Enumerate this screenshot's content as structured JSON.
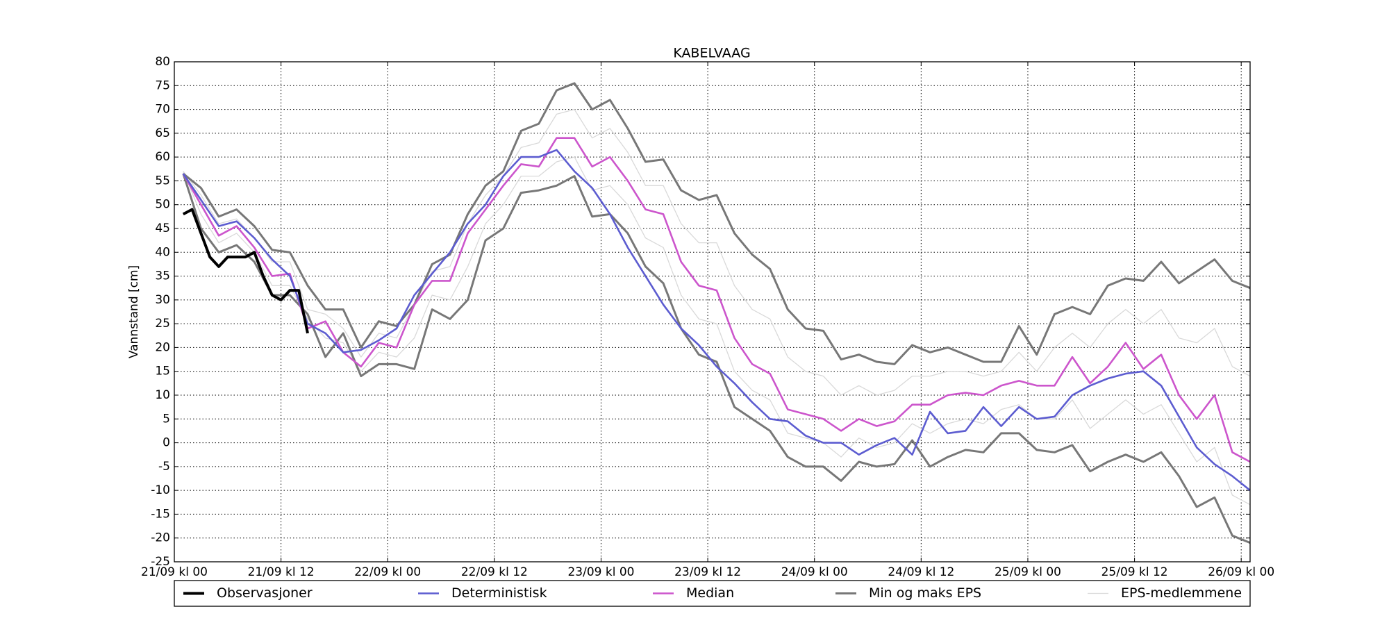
{
  "chart_data": {
    "type": "line",
    "title": "KABELVAAG",
    "y_label": "Vannstand [cm]",
    "x": [
      1,
      3,
      5,
      7,
      9,
      11,
      13,
      15,
      17,
      19,
      21,
      23,
      25,
      27,
      29,
      31,
      33,
      35,
      37,
      39,
      41,
      43,
      45,
      47,
      49,
      51,
      53,
      55,
      57,
      59,
      61,
      63,
      65,
      67,
      69,
      71,
      73,
      75,
      77,
      79,
      81,
      83,
      85,
      87,
      89,
      91,
      93,
      95,
      97,
      99,
      101,
      103,
      105,
      107,
      109,
      111,
      113,
      115,
      117,
      119,
      121
    ],
    "xlim": [
      0,
      121
    ],
    "xticks": [
      {
        "value": 0,
        "label": "21/09 kl 00"
      },
      {
        "value": 12,
        "label": "21/09 kl 12"
      },
      {
        "value": 24,
        "label": "22/09 kl 00"
      },
      {
        "value": 36,
        "label": "22/09 kl 12"
      },
      {
        "value": 48,
        "label": "23/09 kl 00"
      },
      {
        "value": 60,
        "label": "23/09 kl 12"
      },
      {
        "value": 72,
        "label": "24/09 kl 00"
      },
      {
        "value": 84,
        "label": "24/09 kl 12"
      },
      {
        "value": 96,
        "label": "25/09 kl 00"
      },
      {
        "value": 108,
        "label": "25/09 kl 12"
      },
      {
        "value": 120,
        "label": "26/09 kl 00"
      }
    ],
    "ylim": [
      -25,
      80
    ],
    "yticks": [
      -25,
      -20,
      -15,
      -10,
      -5,
      0,
      5,
      10,
      15,
      20,
      25,
      30,
      35,
      40,
      45,
      50,
      55,
      60,
      65,
      70,
      75,
      80
    ],
    "grid": true,
    "legend": "bottom",
    "series": [
      {
        "name": "Observasjoner",
        "color": "#000000",
        "x": [
          1,
          2,
          3,
          4,
          5,
          6,
          7,
          8,
          9,
          10,
          11,
          12,
          13,
          14,
          15
        ],
        "values": [
          48,
          49,
          44,
          39,
          37,
          39,
          39,
          39,
          40,
          35,
          31,
          30,
          32,
          32,
          23
        ]
      },
      {
        "name": "Deterministisk",
        "color": "#5c5cd0",
        "values": [
          56.5,
          51,
          45.5,
          46.5,
          43,
          38.5,
          35,
          25,
          23,
          19,
          19.5,
          21.5,
          24,
          31,
          35.5,
          40,
          46,
          50,
          56,
          60,
          60,
          61.5,
          57,
          53.5,
          48,
          41,
          35,
          29,
          24,
          20.5,
          16,
          12.5,
          8.5,
          5,
          4.5,
          1.5,
          0,
          0,
          -2.5,
          -0.5,
          1,
          -2.5,
          6.5,
          2,
          2.5,
          7.5,
          3.5,
          7.5,
          5,
          5.5,
          10,
          12,
          13.5,
          14.5,
          15,
          12,
          5.5,
          -1,
          -4.5,
          -7,
          -10
        ]
      },
      {
        "name": "Median",
        "color": "#cc55cc",
        "values": [
          56.5,
          50,
          43.5,
          45.5,
          41,
          35,
          35.5,
          24,
          25.5,
          19,
          16,
          21,
          20,
          29,
          34,
          34,
          44,
          49,
          54,
          58.5,
          58,
          64,
          64,
          58,
          60,
          55,
          49,
          48,
          38,
          33,
          32,
          22,
          16.5,
          14.5,
          7,
          6,
          5,
          2.5,
          5,
          3.5,
          4.5,
          8,
          8,
          10,
          10.5,
          10,
          12,
          13,
          12,
          12,
          18,
          12.5,
          16,
          21,
          15.5,
          18.5,
          10,
          5,
          10,
          -2,
          -4
        ]
      },
      {
        "name": "Min og maks EPS",
        "color": "#777777",
        "min": [
          56.5,
          45,
          40,
          41.5,
          38,
          31,
          31,
          27,
          18,
          23,
          14,
          16.5,
          16.5,
          15.5,
          28,
          26,
          30,
          42.5,
          45,
          52.5,
          53,
          54,
          56,
          47.5,
          48,
          44,
          37,
          33.5,
          24,
          18.5,
          17,
          7.5,
          5,
          2.5,
          -3,
          -5,
          -5,
          -8,
          -4,
          -5,
          -4.5,
          0.5,
          -5,
          -3,
          -1.5,
          -2,
          2,
          2,
          -1.5,
          -2,
          -0.5,
          -6,
          -4,
          -2.5,
          -4,
          -2,
          -7,
          -13.5,
          -11.5,
          -19.5,
          -21
        ],
        "max": [
          56.5,
          53.5,
          47.5,
          49,
          45.5,
          40.5,
          40,
          33,
          28,
          28,
          20,
          25.5,
          24.5,
          29,
          37.5,
          39.5,
          48,
          54,
          57,
          65.5,
          67,
          74,
          75.5,
          70,
          72,
          66,
          59,
          59.5,
          53,
          51,
          52,
          44,
          39.5,
          36.5,
          28,
          24,
          23.5,
          17.5,
          18.5,
          17,
          16.5,
          20.5,
          19,
          20,
          18.5,
          17,
          17,
          24.5,
          18.5,
          27,
          28.5,
          27,
          33,
          34.5,
          34,
          38,
          33.5,
          36,
          38.5,
          34,
          32.5
        ]
      },
      {
        "name": "EPS-medlemmene",
        "color": "#d9d9d9",
        "members": [
          [
            57,
            52,
            46,
            47,
            43,
            38,
            38,
            28,
            27,
            24,
            18,
            23,
            22,
            29,
            36,
            37,
            46,
            52,
            56,
            62,
            63,
            69,
            70,
            64,
            66,
            61,
            54,
            54,
            46,
            42,
            42,
            33,
            28,
            26,
            18,
            15,
            14,
            10,
            12,
            10,
            11,
            14,
            14,
            15,
            15,
            14,
            15,
            19,
            15,
            20,
            23,
            20,
            25,
            28,
            25,
            28,
            22,
            21,
            24,
            16,
            14
          ],
          [
            57,
            48,
            42,
            44,
            40,
            33,
            33,
            26,
            22,
            21,
            15,
            19,
            18,
            22,
            31,
            30,
            37,
            46,
            50,
            56,
            56,
            59,
            60,
            53,
            54,
            50,
            43,
            41,
            31,
            26,
            25,
            15,
            11,
            9,
            2,
            1,
            0,
            -3,
            1,
            -1,
            0,
            4,
            2,
            4,
            5,
            4,
            7,
            8,
            5,
            5,
            9,
            3,
            6,
            9,
            6,
            8,
            2,
            -4,
            -1,
            -11,
            -13
          ]
        ]
      }
    ]
  }
}
